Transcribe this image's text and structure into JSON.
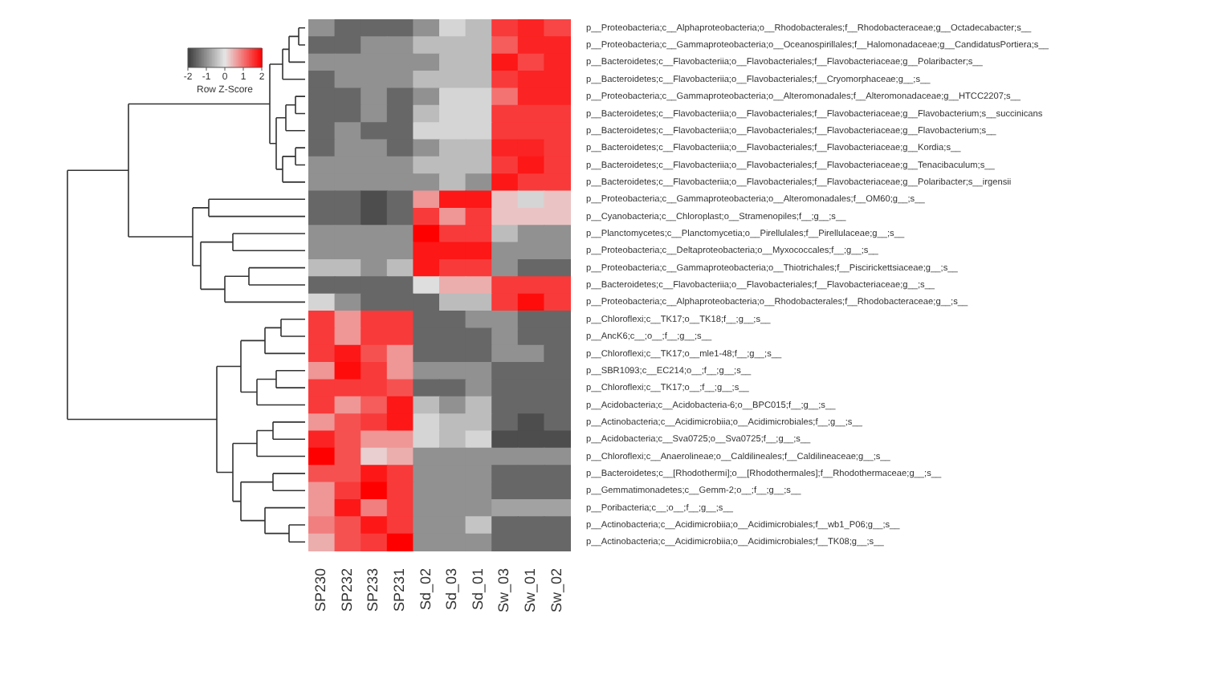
{
  "chart_data": {
    "type": "heatmap",
    "clabel": "Row Z-Score",
    "clim": [
      -2,
      2
    ],
    "cticks": [
      -2,
      -1,
      0,
      1,
      2
    ],
    "categories": [
      "SP230",
      "SP232",
      "SP233",
      "SP231",
      "Sd_02",
      "Sd_03",
      "Sd_01",
      "Sw_03",
      "Sw_01",
      "Sw_02"
    ],
    "y_categories": [
      "p__Proteobacteria;c__Alphaproteobacteria;o__Rhodobacterales;f__Rhodobacteraceae;g__Octadecabacter;s__",
      "p__Proteobacteria;c__Gammaproteobacteria;o__Oceanospirillales;f__Halomonadaceae;g__CandidatusPortiera;s__",
      "p__Bacteroidetes;c__Flavobacteriia;o__Flavobacteriales;f__Flavobacteriaceae;g__Polaribacter;s__",
      "p__Bacteroidetes;c__Flavobacteriia;o__Flavobacteriales;f__Cryomorphaceae;g__;s__",
      "p__Proteobacteria;c__Gammaproteobacteria;o__Alteromonadales;f__Alteromonadaceae;g__HTCC2207;s__",
      "p__Bacteroidetes;c__Flavobacteriia;o__Flavobacteriales;f__Flavobacteriaceae;g__Flavobacterium;s__succinicans",
      "p__Bacteroidetes;c__Flavobacteriia;o__Flavobacteriales;f__Flavobacteriaceae;g__Flavobacterium;s__",
      "p__Bacteroidetes;c__Flavobacteriia;o__Flavobacteriales;f__Flavobacteriaceae;g__Kordia;s__",
      "p__Bacteroidetes;c__Flavobacteriia;o__Flavobacteriales;f__Flavobacteriaceae;g__Tenacibaculum;s__",
      "p__Bacteroidetes;c__Flavobacteriia;o__Flavobacteriales;f__Flavobacteriaceae;g__Polaribacter;s__irgensii",
      "p__Proteobacteria;c__Gammaproteobacteria;o__Alteromonadales;f__OM60;g__;s__",
      "p__Cyanobacteria;c__Chloroplast;o__Stramenopiles;f__;g__;s__",
      "p__Planctomycetes;c__Planctomycetia;o__Pirellulales;f__Pirellulaceae;g__;s__",
      "p__Proteobacteria;c__Deltaproteobacteria;o__Myxococcales;f__;g__;s__",
      "p__Proteobacteria;c__Gammaproteobacteria;o__Thiotrichales;f__Piscirickettsiaceae;g__;s__",
      "p__Bacteroidetes;c__Flavobacteriia;o__Flavobacteriales;f__Flavobacteriaceae;g__;s__",
      "p__Proteobacteria;c__Alphaproteobacteria;o__Rhodobacterales;f__Rhodobacteraceae;g__;s__",
      "p__Chloroflexi;c__TK17;o__TK18;f__;g__;s__",
      "p__AncK6;c__;o__;f__;g__;s__",
      "p__Chloroflexi;c__TK17;o__mle1-48;f__;g__;s__",
      "p__SBR1093;c__EC214;o__;f__;g__;s__",
      "p__Chloroflexi;c__TK17;o__;f__;g__;s__",
      "p__Acidobacteria;c__Acidobacteria-6;o__BPC015;f__;g__;s__",
      "p__Actinobacteria;c__Acidimicrobiia;o__Acidimicrobiales;f__;g__;s__",
      "p__Acidobacteria;c__Sva0725;o__Sva0725;f__;g__;s__",
      "p__Chloroflexi;c__Anaerolineae;o__Caldilineales;f__Caldilineaceae;g__;s__",
      "p__Bacteroidetes;c__[Rhodothermi];o__[Rhodothermales];f__Rhodothermaceae;g__;s__",
      "p__Gemmatimonadetes;c__Gemm-2;o__;f__;g__;s__",
      "p__Poribacteria;c__;o__;f__;g__;s__",
      "p__Actinobacteria;c__Acidimicrobiia;o__Acidimicrobiales;f__wb1_P06;g__;s__",
      "p__Actinobacteria;c__Acidimicrobiia;o__Acidimicrobiales;f__TK08;g__;s__"
    ],
    "cells": [
      [
        -1,
        -1.5,
        -1.5,
        -1.5,
        -1,
        -0.2,
        -0.5,
        1.5,
        1.7,
        1.4
      ],
      [
        -1.5,
        -1.5,
        -1,
        -1,
        -0.5,
        -0.5,
        -0.5,
        1.2,
        1.7,
        1.7
      ],
      [
        -1,
        -1,
        -1,
        -1,
        -1,
        -0.5,
        -0.5,
        1.8,
        1.4,
        1.7
      ],
      [
        -1.5,
        -1,
        -1,
        -1,
        -0.5,
        -0.5,
        -0.5,
        1.5,
        1.7,
        1.7
      ],
      [
        -1.5,
        -1.5,
        -1,
        -1.5,
        -1,
        -0.2,
        -0.2,
        1,
        1.7,
        1.7
      ],
      [
        -1.5,
        -1.5,
        -1,
        -1.5,
        -0.5,
        -0.2,
        -0.2,
        1.5,
        1.5,
        1.5
      ],
      [
        -1.5,
        -1,
        -1.5,
        -1.5,
        -0.2,
        -0.2,
        -0.2,
        1.5,
        1.5,
        1.5
      ],
      [
        -1.5,
        -1,
        -1,
        -1.5,
        -1,
        -0.5,
        -0.5,
        1.7,
        1.7,
        1.5
      ],
      [
        -1,
        -1,
        -1,
        -1,
        -0.5,
        -0.5,
        -0.5,
        1.5,
        1.8,
        1.5
      ],
      [
        -1,
        -1,
        -1,
        -1,
        -1,
        -0.5,
        -1,
        1.8,
        1.5,
        1.5
      ],
      [
        -1.5,
        -1.5,
        -1.8,
        -1.5,
        0.7,
        1.8,
        1.8,
        0.3,
        -0.2,
        0.3
      ],
      [
        -1.5,
        -1.5,
        -1.8,
        -1.5,
        1.5,
        0.7,
        1.5,
        0.3,
        0.3,
        0.3
      ],
      [
        -1,
        -1,
        -1,
        -1,
        2,
        1.5,
        1.5,
        -0.5,
        -1,
        -1
      ],
      [
        -1,
        -1,
        -1,
        -1,
        1.8,
        1.8,
        1.8,
        -1,
        -1,
        -1
      ],
      [
        -0.5,
        -0.5,
        -1,
        -0.5,
        1.8,
        1.5,
        1.5,
        -1,
        -1.5,
        -1.5
      ],
      [
        -1.5,
        -1.5,
        -1.5,
        -1.5,
        -0.1,
        0.5,
        0.5,
        1.5,
        1.5,
        1.5
      ],
      [
        -0.2,
        -1,
        -1.5,
        -1.5,
        -1.5,
        -0.5,
        -0.5,
        1.5,
        1.9,
        1.5
      ],
      [
        1.5,
        0.7,
        1.5,
        1.5,
        -1.5,
        -1.5,
        -1,
        -1,
        -1.5,
        -1.5
      ],
      [
        1.5,
        0.7,
        1.5,
        1.5,
        -1.5,
        -1.5,
        -1.5,
        -1,
        -1.5,
        -1.5
      ],
      [
        1.5,
        1.8,
        1.3,
        0.7,
        -1.5,
        -1.5,
        -1.5,
        -1,
        -1,
        -1.5
      ],
      [
        0.7,
        1.9,
        1.5,
        0.7,
        -1,
        -1,
        -1,
        -1.5,
        -1.5,
        -1.5
      ],
      [
        1.5,
        1.5,
        1.5,
        1.3,
        -1.5,
        -1.5,
        -1,
        -1.5,
        -1.5,
        -1.5
      ],
      [
        1.5,
        0.7,
        1.2,
        1.8,
        -0.5,
        -1,
        -0.5,
        -1.5,
        -1.5,
        -1.5
      ],
      [
        0.7,
        1.3,
        1.5,
        1.8,
        -0.2,
        -0.5,
        -0.5,
        -1.5,
        -1.8,
        -1.5
      ],
      [
        1.7,
        1.3,
        0.7,
        0.7,
        -0.2,
        -0.5,
        -0.2,
        -1.8,
        -1.8,
        -1.8
      ],
      [
        2,
        1.3,
        0.2,
        0.5,
        -1,
        -1,
        -1,
        -1,
        -1,
        -1
      ],
      [
        1.3,
        1.3,
        1.8,
        1.5,
        -1,
        -1,
        -1,
        -1.5,
        -1.5,
        -1.5
      ],
      [
        0.7,
        1.5,
        2,
        1.5,
        -1,
        -1,
        -1,
        -1.5,
        -1.5,
        -1.5
      ],
      [
        0.7,
        1.8,
        0.9,
        1.5,
        -1,
        -1,
        -1,
        -0.8,
        -0.8,
        -0.8
      ],
      [
        0.9,
        1.3,
        1.8,
        1.5,
        -1,
        -1,
        -0.4,
        -1.5,
        -1.5,
        -1.5
      ],
      [
        0.5,
        1.3,
        1.5,
        2,
        -1,
        -1,
        -1,
        -1.5,
        -1.5,
        -1.5
      ]
    ]
  }
}
